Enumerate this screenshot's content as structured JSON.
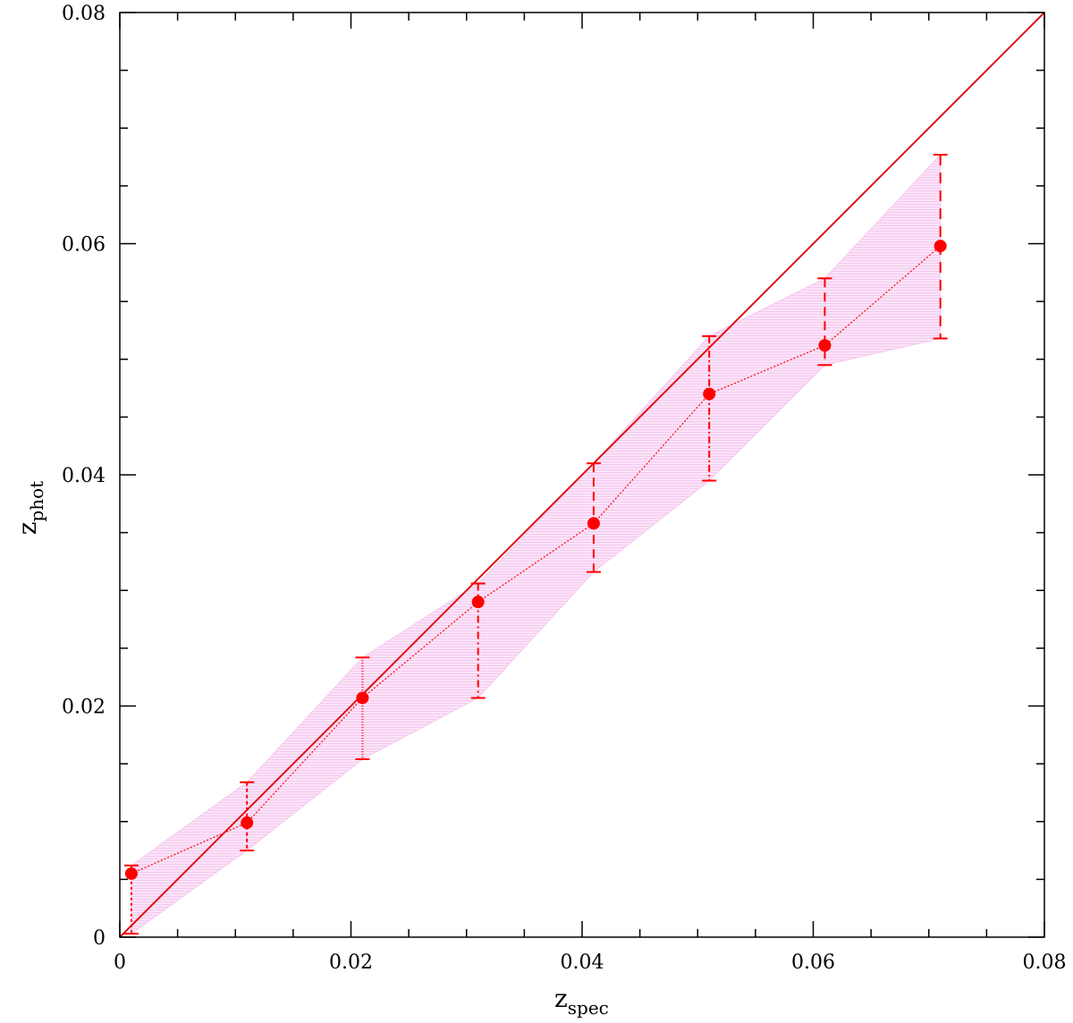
{
  "chart_data": {
    "type": "scatter",
    "xlabel": "z",
    "xlabel_sub": "spec",
    "ylabel": "z",
    "ylabel_sub": "phot",
    "xlim": [
      0,
      0.08
    ],
    "ylim": [
      0,
      0.08
    ],
    "x_ticks": [
      "0",
      "0.02",
      "0.04",
      "0.06",
      "0.08"
    ],
    "y_ticks": [
      "0",
      "0.02",
      "0.04",
      "0.06",
      "0.08"
    ],
    "x_tick_values": [
      0,
      0.02,
      0.04,
      0.06,
      0.08
    ],
    "y_tick_values": [
      0,
      0.02,
      0.04,
      0.06,
      0.08
    ],
    "minor_tick_step": 0.005,
    "grid": false,
    "colors": {
      "points": "#ff0000",
      "reference_line": "#e01010",
      "band": "#f5c8f0",
      "axes": "#000000"
    },
    "reference_line": {
      "x": [
        0,
        0.08
      ],
      "y": [
        0,
        0.08
      ]
    },
    "series": [
      {
        "x": [
          0.001,
          0.011,
          0.021,
          0.031,
          0.041,
          0.051,
          0.061,
          0.071
        ],
        "y": [
          0.0055,
          0.0099,
          0.0207,
          0.029,
          0.0358,
          0.047,
          0.0512,
          0.0598
        ],
        "y_upper": [
          0.0062,
          0.0134,
          0.0242,
          0.0306,
          0.041,
          0.052,
          0.057,
          0.0677
        ],
        "y_lower": [
          0.0003,
          0.0075,
          0.0154,
          0.0207,
          0.0316,
          0.0395,
          0.0495,
          0.0518
        ]
      }
    ],
    "band": {
      "x": [
        0.001,
        0.011,
        0.021,
        0.031,
        0.041,
        0.051,
        0.061,
        0.071
      ],
      "upper": [
        0.0062,
        0.0134,
        0.0242,
        0.0306,
        0.041,
        0.052,
        0.057,
        0.0677
      ],
      "lower": [
        0.0003,
        0.0075,
        0.0154,
        0.0207,
        0.0316,
        0.0395,
        0.0495,
        0.0518
      ]
    }
  }
}
